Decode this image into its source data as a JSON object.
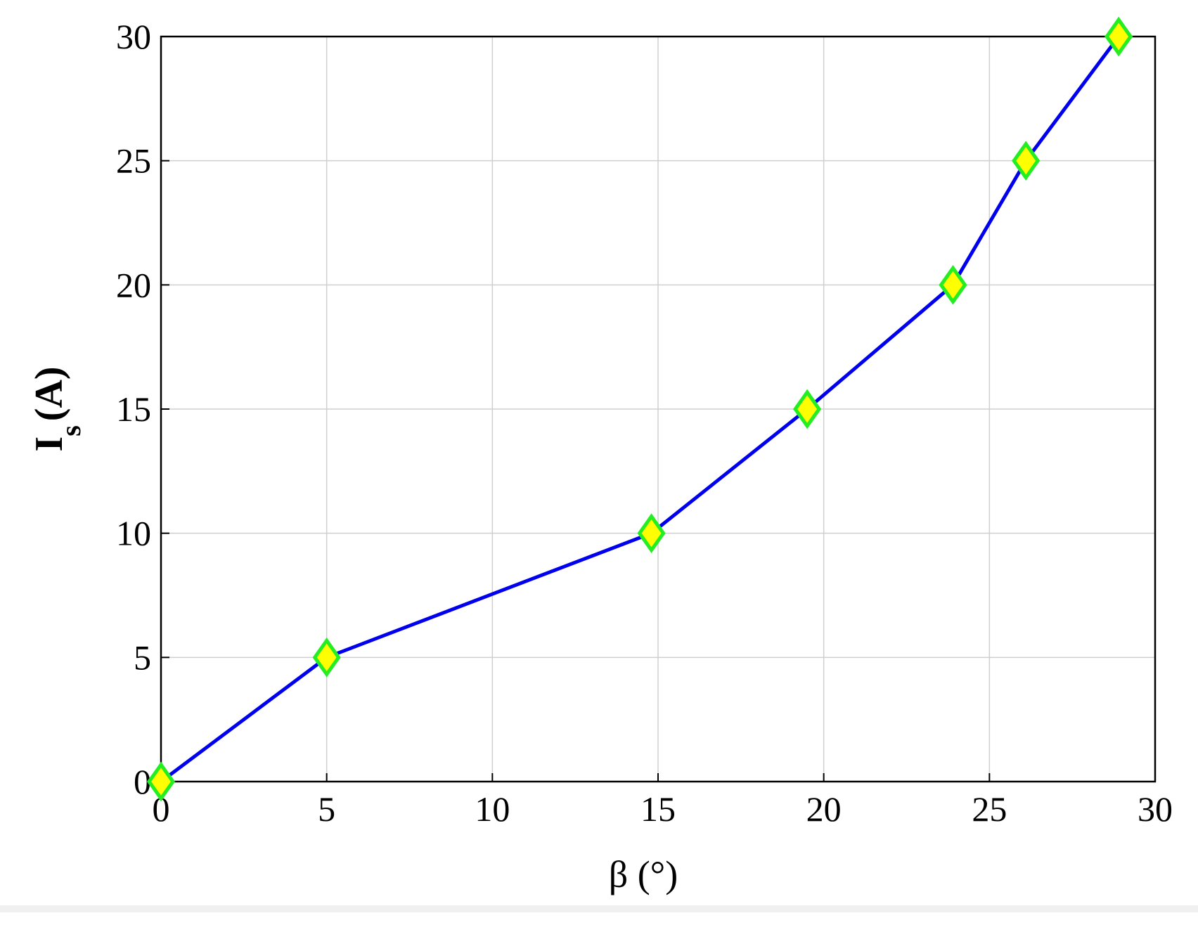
{
  "chart_data": {
    "type": "line",
    "xlabel": "β (°)",
    "ylabel": {
      "main": "I",
      "sub": "s",
      "unit": "(A)"
    },
    "series": [
      {
        "name": "Is",
        "color": "#0000ee",
        "marker_fill": "#ffff00",
        "marker_edge": "#22ee22",
        "x": [
          0,
          5,
          14.8,
          19.5,
          23.9,
          26.1,
          28.9
        ],
        "values": [
          0,
          5,
          10,
          15,
          20,
          25,
          30
        ]
      }
    ],
    "xlim": [
      0,
      30
    ],
    "xticks": [
      0,
      5,
      10,
      15,
      20,
      25,
      30
    ],
    "ylim": [
      0,
      30
    ],
    "yticks": [
      0,
      5,
      10,
      15,
      20,
      25,
      30
    ],
    "grid": true
  }
}
